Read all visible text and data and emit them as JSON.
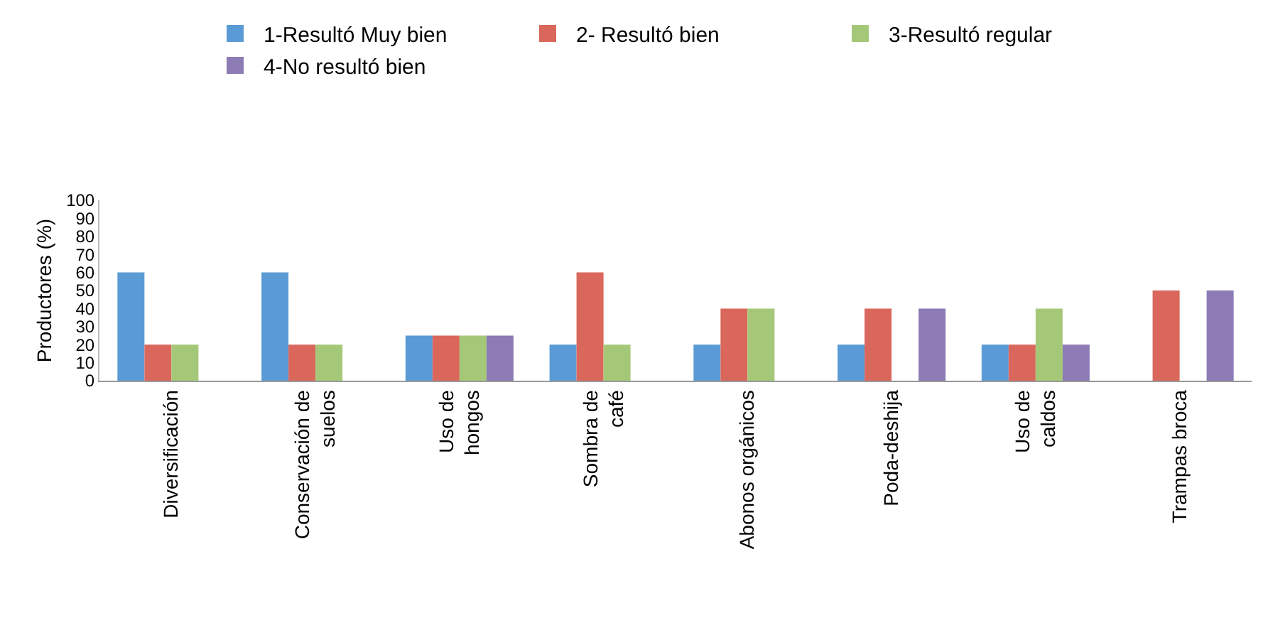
{
  "chart_data": {
    "type": "bar",
    "ylabel": "Productores (%)",
    "categories": [
      "Diversificación",
      "Conservación de suelos",
      "Uso de hongos",
      "Sombra de café",
      "Abonos orgánicos",
      "Poda-deshija",
      "Uso de caldos",
      "Trampas broca"
    ],
    "series": [
      {
        "name": "1-Resultó Muy bien",
        "color": "#5b9bd5",
        "values": [
          60,
          60,
          25,
          20,
          20,
          20,
          20,
          0
        ]
      },
      {
        "name": "2- Resultó bien",
        "color": "#d9675b",
        "values": [
          20,
          20,
          25,
          60,
          40,
          40,
          20,
          50
        ]
      },
      {
        "name": "3-Resultó regular",
        "color": "#a5c878",
        "values": [
          20,
          20,
          25,
          20,
          40,
          0,
          40,
          0
        ]
      },
      {
        "name": "4-No resultó bien",
        "color": "#8c7bb5",
        "values": [
          0,
          0,
          25,
          0,
          0,
          40,
          20,
          50
        ]
      }
    ],
    "ylim": [
      0,
      100
    ],
    "yticks": [
      0,
      10,
      20,
      30,
      40,
      50,
      60,
      70,
      80,
      90,
      100
    ],
    "grid": false,
    "legend": "top"
  }
}
